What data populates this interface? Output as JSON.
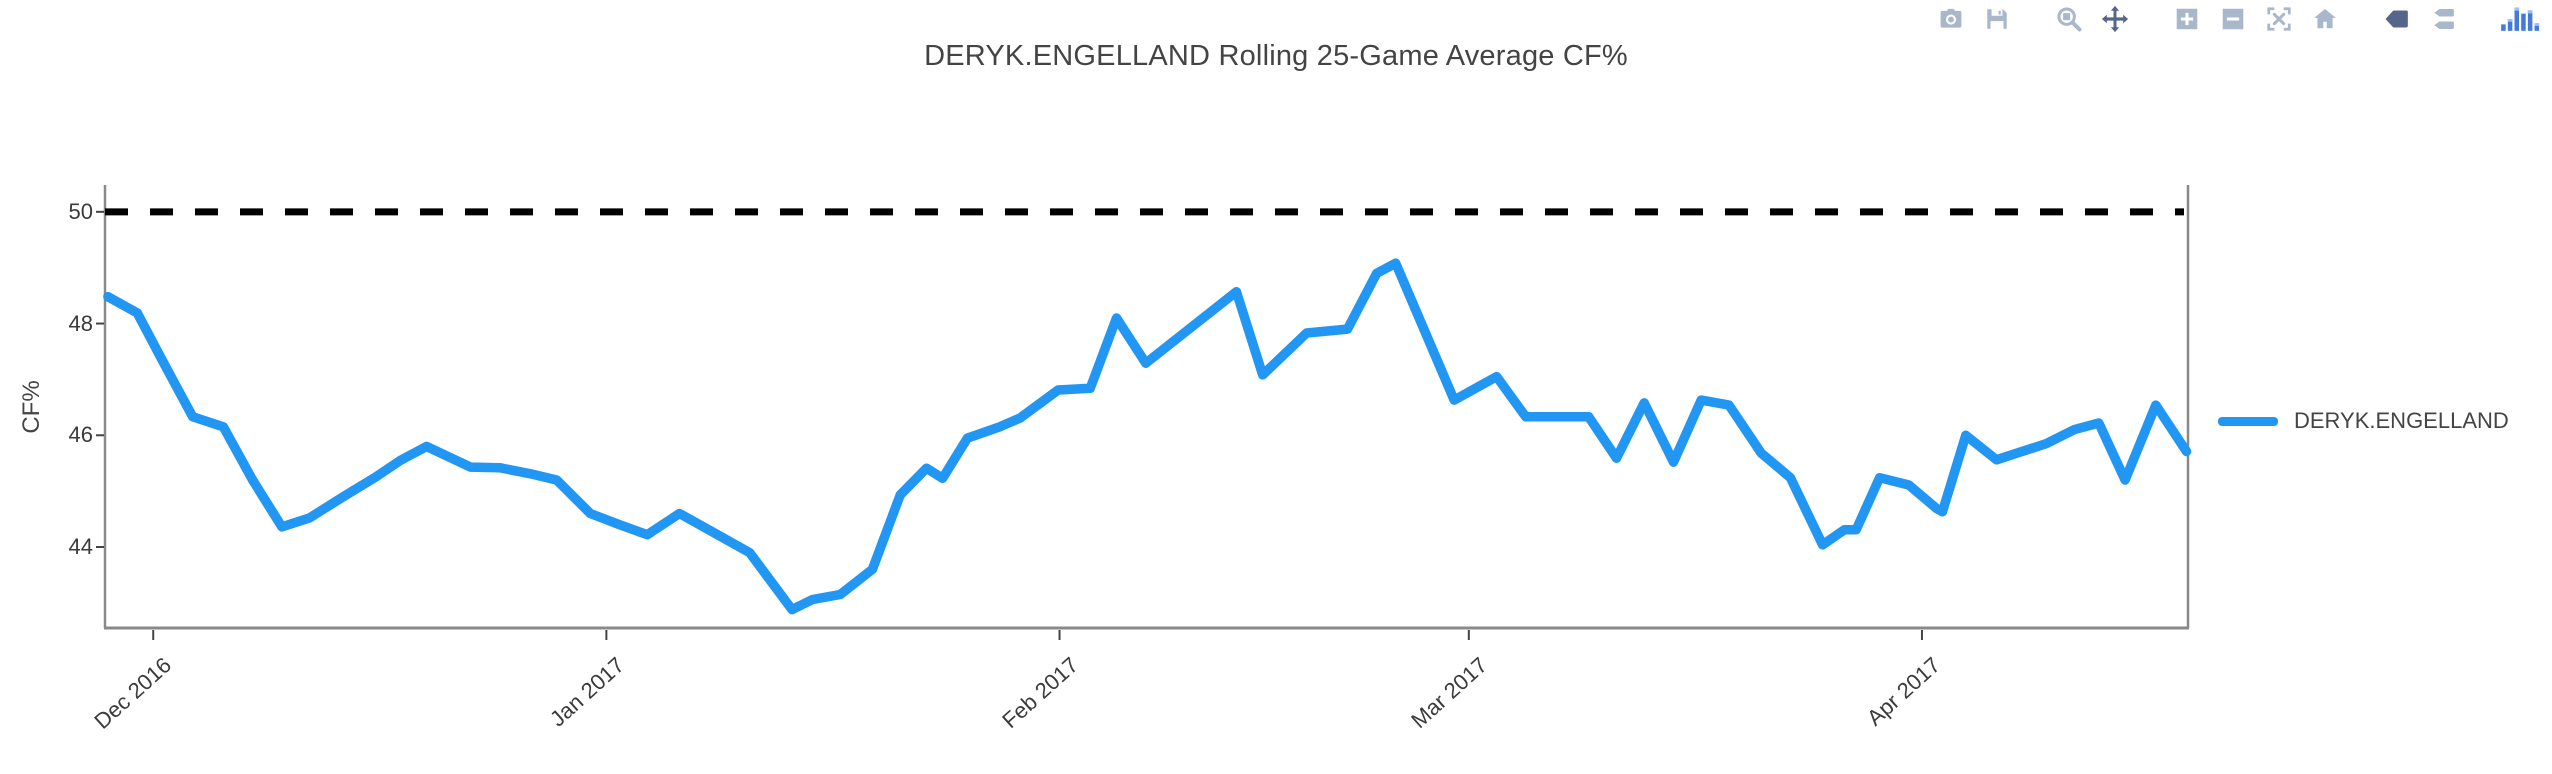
{
  "chart_data": {
    "type": "line",
    "title": "DERYK.ENGELLAND Rolling 25-Game Average CF%",
    "xlabel": "",
    "ylabel": "CF%",
    "grid": false,
    "legend_position": "right-middle",
    "x_axis": {
      "kind": "date",
      "tick_labels": [
        "Dec 2016",
        "Jan 2017",
        "Feb 2017",
        "Mar 2017",
        "Apr 2017"
      ],
      "tick_days_from_dec1": [
        0,
        31,
        62,
        90,
        121
      ],
      "range_days_from_dec1": [
        -3.3,
        139.2
      ]
    },
    "y_axis": {
      "tick_labels": [
        "50",
        "48",
        "46",
        "44"
      ],
      "ticks": [
        50,
        48,
        46,
        44
      ],
      "range": [
        42.55,
        50.48
      ]
    },
    "baseline": {
      "value": 50,
      "style": "dashed",
      "color": "#000000"
    },
    "series": [
      {
        "name": "DERYK.ENGELLAND",
        "color": "#2196f3",
        "x_days_from_dec1": [
          -3.1,
          -1.1,
          0.7,
          2.7,
          4.8,
          6.8,
          8.8,
          10.7,
          13.0,
          15.2,
          16.9,
          18.7,
          21.7,
          23.7,
          25.8,
          27.6,
          29.9,
          31.9,
          33.8,
          36.0,
          38.6,
          40.8,
          43.7,
          45.1,
          47.0,
          49.2,
          51.1,
          52.9,
          54.0,
          55.7,
          57.9,
          59.3,
          61.9,
          64.1,
          65.9,
          67.9,
          74.1,
          75.9,
          78.9,
          81.7,
          83.7,
          85.0,
          89.0,
          91.9,
          93.9,
          96.2,
          98.2,
          100.1,
          102.0,
          104.0,
          105.9,
          107.8,
          110.0,
          112.0,
          114.2,
          115.7,
          116.5,
          118.1,
          120.1,
          122.0,
          122.4,
          124.0,
          126.1,
          129.5,
          131.4,
          133.1,
          134.9,
          137.0,
          139.1
        ],
        "values": [
          48.48,
          48.19,
          47.3,
          46.33,
          46.15,
          45.2,
          44.36,
          44.52,
          44.9,
          45.25,
          45.55,
          45.8,
          45.43,
          45.42,
          45.31,
          45.2,
          44.6,
          44.4,
          44.22,
          44.6,
          44.22,
          43.9,
          42.88,
          43.06,
          43.15,
          43.6,
          44.93,
          45.41,
          45.23,
          45.95,
          46.15,
          46.31,
          46.81,
          46.84,
          48.1,
          47.29,
          48.57,
          47.08,
          47.83,
          47.9,
          48.9,
          49.08,
          46.63,
          47.05,
          46.33,
          46.33,
          46.33,
          45.59,
          46.58,
          45.52,
          46.63,
          46.54,
          45.68,
          45.24,
          44.04,
          44.31,
          44.31,
          45.24,
          45.11,
          44.69,
          44.63,
          46.0,
          45.56,
          45.85,
          46.1,
          46.22,
          45.2,
          46.54,
          45.71
        ]
      }
    ]
  },
  "legend": {
    "entries": [
      {
        "label": "DERYK.ENGELLAND",
        "color": "#2196f3"
      }
    ]
  },
  "modebar": {
    "buttons": [
      "download-plot-camera",
      "save-chart",
      "zoom",
      "pan",
      "zoom-in",
      "zoom-out",
      "autoscale",
      "reset-axes-home",
      "toggle-hover-closest",
      "toggle-hover-compare",
      "plotly-logo"
    ],
    "active_buttons": [
      "pan",
      "toggle-hover-closest"
    ],
    "icon_color": "#a9b7cb",
    "active_icon_color": "#54678a",
    "logo_color": "#447adb"
  },
  "colors": {
    "line": "#2196f3",
    "baseline": "#000000",
    "axis_line": "#898989",
    "tick": "#444444",
    "text": "#444444",
    "background": "#ffffff"
  }
}
